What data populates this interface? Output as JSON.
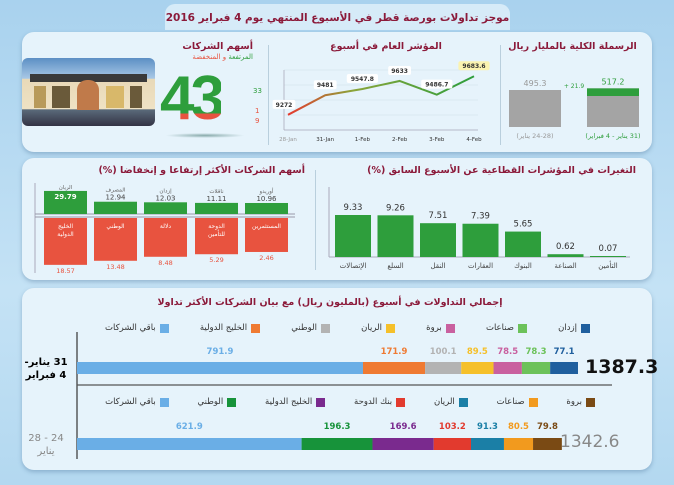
{
  "title": "موجز تداولات بورصة قطر في الأسبوع المنتهي يوم 4 فبراير 2016",
  "colors": {
    "green": "#2e9e3c",
    "red": "#e8533f",
    "title": "#8b1a3a",
    "gray": "#9a9a9a"
  },
  "photo": {
    "icon": "qatar-exchange-building-photo"
  },
  "companies": {
    "title": "أسهم الشركات",
    "subtitle_up": "المرتفعة",
    "subtitle_and": "و",
    "subtitle_down": "المنخفضة",
    "total": "43",
    "up": "33",
    "unchanged": "1",
    "down": "9"
  },
  "chart_data": [
    {
      "id": "capitalization",
      "type": "bar",
      "title": "الرسملة الكلية بالمليار ريال",
      "categories": [
        "(24-28 يناير)",
        "(31 يناير - 4 فبراير)"
      ],
      "values": [
        495.3,
        517.2
      ],
      "value_labels": [
        "495.3",
        "517.2"
      ],
      "change_label": "+ 21.9"
    },
    {
      "id": "general-index",
      "type": "line",
      "title": "المؤشر العام في أسبوع",
      "x": [
        "28-Jan",
        "31-Jan",
        "1-Feb",
        "2-Feb",
        "3-Feb",
        "4-Feb"
      ],
      "values": [
        9272,
        9481,
        9547.8,
        9633,
        9486.7,
        9683.6
      ],
      "value_labels": [
        "9272",
        "9481",
        "9547.8",
        "9633",
        "9486.7",
        "9683.6"
      ],
      "ylim": [
        9110,
        9750
      ],
      "grid": true
    },
    {
      "id": "sector-changes",
      "type": "bar",
      "title": "التغيرات في المؤشرات القطاعية عن الأسبوع السابق (%)",
      "categories": [
        "الإتصالات",
        "السلع",
        "النقل",
        "العقارات",
        "البنوك",
        "الصناعة",
        "التأمين"
      ],
      "values": [
        9.33,
        9.26,
        7.51,
        7.39,
        5.65,
        0.62,
        0.07
      ],
      "value_labels": [
        "9.33",
        "9.26",
        "7.51",
        "7.39",
        "5.65",
        "0.62",
        "0.07"
      ]
    },
    {
      "id": "top-movers",
      "type": "bar",
      "title": "أسهم الشركات الأكثر إرتفاعا و إنخفاضا (%)",
      "gainers": [
        {
          "name": "الريان",
          "value": 29.79,
          "label": "29.79"
        },
        {
          "name": "المصرف",
          "value": 12.94,
          "label": "12.94"
        },
        {
          "name": "إزدان",
          "value": 12.03,
          "label": "12.03"
        },
        {
          "name": "ناقلات",
          "value": 11.11,
          "label": "11.11"
        },
        {
          "name": "أوريدو",
          "value": 10.96,
          "label": "10.96"
        }
      ],
      "losers": [
        {
          "name": "الخليج الدولية",
          "value": -18.57,
          "label": "18.57"
        },
        {
          "name": "الوطني",
          "value": -13.48,
          "label": "13.48"
        },
        {
          "name": "دلالة",
          "value": -8.48,
          "label": "8.48"
        },
        {
          "name": "الدوحة للتأمين",
          "value": -5.29,
          "label": "5.29"
        },
        {
          "name": "المستثمرين",
          "value": -2.46,
          "label": "2.46"
        }
      ]
    },
    {
      "id": "weekly-trading",
      "type": "bar",
      "stacked": true,
      "orientation": "horizontal",
      "title": "إجمالي التداولات في أسبوع (بالمليون ريال) مع بيان الشركات الأكثر تداولا",
      "periods": [
        {
          "label_line1": "31 يناير-",
          "label_line2": "4 فبراير",
          "total": "1387.3",
          "series": [
            {
              "name": "باقي الشركات",
              "value": 791.9,
              "label": "791.9",
              "color": "#6aaee6"
            },
            {
              "name": "الخليج الدولية",
              "value": 171.9,
              "label": "171.9",
              "color": "#ef7a32"
            },
            {
              "name": "الوطني",
              "value": 100.1,
              "label": "100.1",
              "color": "#b3b3b3"
            },
            {
              "name": "الريان",
              "value": 89.5,
              "label": "89.5",
              "color": "#f5c02a"
            },
            {
              "name": "بروة",
              "value": 78.5,
              "label": "78.5",
              "color": "#c9609f"
            },
            {
              "name": "صناعات",
              "value": 78.3,
              "label": "78.3",
              "color": "#6cc25a"
            },
            {
              "name": "إزدان",
              "value": 77.1,
              "label": "77.1",
              "color": "#1f5f9e"
            }
          ]
        },
        {
          "label_line1": "24 - 28",
          "label_line2": "يناير",
          "total": "1342.6",
          "series": [
            {
              "name": "باقي الشركات",
              "value": 621.9,
              "label": "621.9",
              "color": "#6aaee6"
            },
            {
              "name": "الوطني",
              "value": 196.3,
              "label": "196.3",
              "color": "#17933a"
            },
            {
              "name": "الخليج الدولية",
              "value": 169.6,
              "label": "169.6",
              "color": "#7a2a8e"
            },
            {
              "name": "بنك الدوحة",
              "value": 103.2,
              "label": "103.2",
              "color": "#e23a2e"
            },
            {
              "name": "الريان",
              "value": 91.3,
              "label": "91.3",
              "color": "#1b7fa6"
            },
            {
              "name": "صناعات",
              "value": 80.5,
              "label": "80.5",
              "color": "#f29a1e"
            },
            {
              "name": "بروة",
              "value": 79.8,
              "label": "79.8",
              "color": "#7a4a14"
            }
          ]
        }
      ]
    }
  ]
}
